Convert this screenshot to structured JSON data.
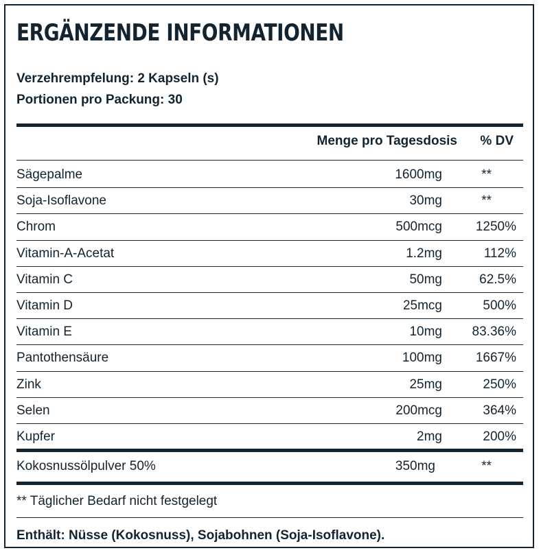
{
  "title": "ERGÄNZENDE INFORMATIONEN",
  "serving": {
    "size": "Verzehrempfelung: 2 Kapseln (s)",
    "servings": "Portionen pro Packung: 30"
  },
  "table": {
    "headers": {
      "amount": "Menge pro Tagesdosis",
      "dv": "% DV"
    },
    "rows": [
      {
        "name": "Sägepalme",
        "amount": "1600mg",
        "dv": "**"
      },
      {
        "name": "Soja-Isoflavone",
        "amount": "30mg",
        "dv": "**"
      },
      {
        "name": "Chrom",
        "amount": "500mcg",
        "dv": "1250%"
      },
      {
        "name": "Vitamin-A-Acetat",
        "amount": "1.2mg",
        "dv": "112%"
      },
      {
        "name": "Vitamin C",
        "amount": "50mg",
        "dv": "62.5%"
      },
      {
        "name": "Vitamin D",
        "amount": "25mcg",
        "dv": "500%"
      },
      {
        "name": "Vitamin E",
        "amount": "10mg",
        "dv": "83.36%"
      },
      {
        "name": "Pantothensäure",
        "amount": "100mg",
        "dv": "1667%"
      },
      {
        "name": "Zink",
        "amount": "25mg",
        "dv": "250%"
      },
      {
        "name": "Selen",
        "amount": "200mcg",
        "dv": "364%"
      },
      {
        "name": "Kupfer",
        "amount": "2mg",
        "dv": "200%"
      }
    ],
    "blend": {
      "name": "Kokosnussölpulver 50%",
      "amount": "350mg",
      "dv": "**"
    }
  },
  "footnote": "** Täglicher Bedarf nicht festgelegt",
  "contains": "Enthält: Nüsse (Kokosnuss), Sojabohnen (Soja-Isoflavone)."
}
